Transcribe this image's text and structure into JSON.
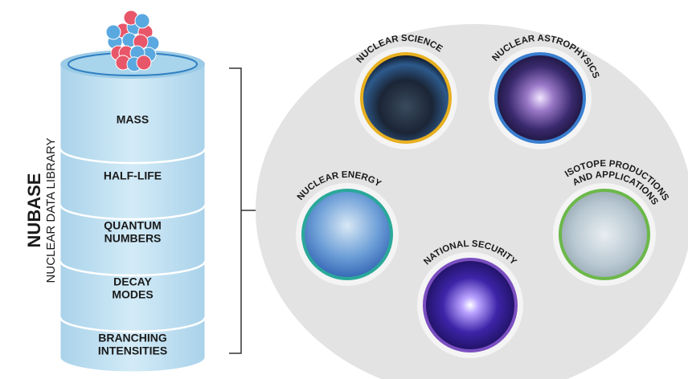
{
  "library": {
    "title": "NUBASE",
    "subtitle": "NUCLEAR DATA LIBRARY",
    "layers": [
      {
        "lines": [
          "MASS"
        ]
      },
      {
        "lines": [
          "HALF-LIFE"
        ]
      },
      {
        "lines": [
          "QUANTUM",
          "NUMBERS"
        ]
      },
      {
        "lines": [
          "DECAY",
          "MODES"
        ]
      },
      {
        "lines": [
          "BRANCHING",
          "INTENSITIES"
        ]
      }
    ]
  },
  "applications": [
    {
      "lines": [
        "NUCLEAR SCIENCE"
      ]
    },
    {
      "lines": [
        "NUCLEAR ASTROPHYSICS"
      ]
    },
    {
      "lines": [
        "NUCLEAR ENERGY"
      ]
    },
    {
      "lines": [
        "ISOTOPE PRODUCTIONS",
        "AND APPLICATIONS"
      ]
    },
    {
      "lines": [
        "NATIONAL SECURITY"
      ]
    }
  ]
}
